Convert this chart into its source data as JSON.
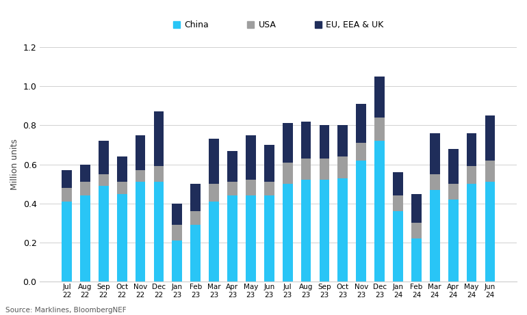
{
  "categories": [
    "Jul\n22",
    "Aug\n22",
    "Sep\n22",
    "Oct\n22",
    "Nov\n22",
    "Dec\n22",
    "Jan\n23",
    "Feb\n23",
    "Mar\n23",
    "Apr\n23",
    "May\n23",
    "Jun\n23",
    "Jul\n23",
    "Aug\n23",
    "Sep\n23",
    "Oct\n23",
    "Nov\n23",
    "Dec\n23",
    "Jan\n24",
    "Feb\n24",
    "Mar\n24",
    "Apr\n24",
    "May\n24",
    "Jun\n24"
  ],
  "china": [
    0.41,
    0.44,
    0.49,
    0.45,
    0.51,
    0.51,
    0.21,
    0.29,
    0.41,
    0.44,
    0.44,
    0.44,
    0.5,
    0.52,
    0.52,
    0.53,
    0.62,
    0.72,
    0.36,
    0.22,
    0.47,
    0.42,
    0.5,
    0.51
  ],
  "usa": [
    0.07,
    0.07,
    0.06,
    0.06,
    0.06,
    0.08,
    0.08,
    0.07,
    0.09,
    0.07,
    0.08,
    0.07,
    0.11,
    0.11,
    0.11,
    0.11,
    0.09,
    0.12,
    0.08,
    0.08,
    0.08,
    0.08,
    0.09,
    0.11
  ],
  "eu": [
    0.09,
    0.09,
    0.17,
    0.13,
    0.18,
    0.28,
    0.11,
    0.14,
    0.23,
    0.16,
    0.23,
    0.19,
    0.2,
    0.19,
    0.17,
    0.16,
    0.2,
    0.21,
    0.12,
    0.15,
    0.21,
    0.18,
    0.17,
    0.23
  ],
  "china_color": "#29c5f6",
  "usa_color": "#9e9e9e",
  "eu_color": "#1f2d5a",
  "ylim": [
    0,
    1.2
  ],
  "ylabel": "Million units",
  "source": "Source: Marklines, BloombergNEF",
  "legend_labels": [
    "China",
    "USA",
    "EU, EEA & UK"
  ],
  "bg_color": "#ffffff",
  "grid_color": "#d0d0d0",
  "spine_color": "#cccccc"
}
